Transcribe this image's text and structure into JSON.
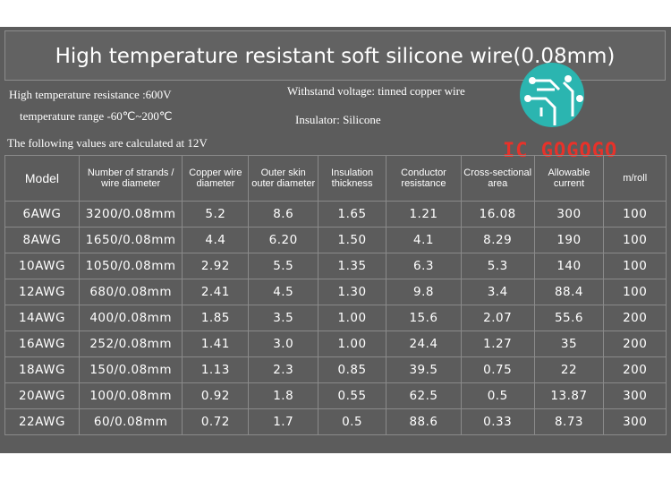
{
  "header": {
    "title": "High temperature resistant soft silicone wire(0.08mm)"
  },
  "specs": {
    "resistance": "High temperature resistance :600V",
    "voltage": "Withstand voltage: tinned copper wire",
    "range": "temperature range -60℃~200℃",
    "insulator": "Insulator: Silicone"
  },
  "note": "The following values are calculated at 12V",
  "logo": "IC GOGOGO",
  "table": {
    "columns": [
      "Model",
      "Number of strands / wire diameter",
      "Copper wire diameter",
      "Outer skin outer diameter",
      "Insulation thickness",
      "Conductor resistance",
      "Cross-sectional area",
      "Allowable current",
      "m/roll"
    ],
    "rows": [
      [
        "6AWG",
        "3200/0.08mm",
        "5.2",
        "8.6",
        "1.65",
        "1.21",
        "16.08",
        "300",
        "100"
      ],
      [
        "8AWG",
        "1650/0.08mm",
        "4.4",
        "6.20",
        "1.50",
        "4.1",
        "8.29",
        "190",
        "100"
      ],
      [
        "10AWG",
        "1050/0.08mm",
        "2.92",
        "5.5",
        "1.35",
        "6.3",
        "5.3",
        "140",
        "100"
      ],
      [
        "12AWG",
        "680/0.08mm",
        "2.41",
        "4.5",
        "1.30",
        "9.8",
        "3.4",
        "88.4",
        "100"
      ],
      [
        "14AWG",
        "400/0.08mm",
        "1.85",
        "3.5",
        "1.00",
        "15.6",
        "2.07",
        "55.6",
        "200"
      ],
      [
        "16AWG",
        "252/0.08mm",
        "1.41",
        "3.0",
        "1.00",
        "24.4",
        "1.27",
        "35",
        "200"
      ],
      [
        "18AWG",
        "150/0.08mm",
        "1.13",
        "2.3",
        "0.85",
        "39.5",
        "0.75",
        "22",
        "200"
      ],
      [
        "20AWG",
        "100/0.08mm",
        "0.92",
        "1.8",
        "0.55",
        "62.5",
        "0.5",
        "13.87",
        "300"
      ],
      [
        "22AWG",
        "60/0.08mm",
        "0.72",
        "1.7",
        "0.5",
        "88.6",
        "0.33",
        "8.73",
        "300"
      ]
    ]
  }
}
